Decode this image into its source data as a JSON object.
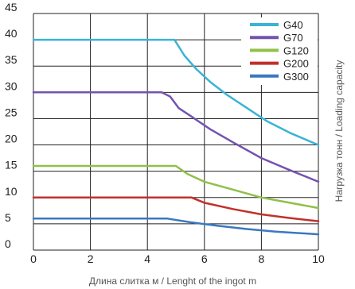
{
  "chart_data": {
    "type": "line",
    "xlabel": "Длина слитка м / Lenght of the ingot m",
    "ylabel": "Нагрузка тонн / Loading capacity",
    "xlim": [
      0,
      10
    ],
    "ylim": [
      0,
      45
    ],
    "x_ticks": [
      0,
      2,
      4,
      6,
      8,
      10
    ],
    "y_ticks": [
      0,
      5,
      10,
      15,
      20,
      25,
      30,
      35,
      40,
      45
    ],
    "grid": true,
    "legend_position": "top-right",
    "series": [
      {
        "name": "G40",
        "color": "#3bb3d6",
        "points": [
          [
            0,
            40
          ],
          [
            4.95,
            40
          ],
          [
            5.3,
            37
          ],
          [
            5.7,
            34.5
          ],
          [
            6.2,
            32
          ],
          [
            6.8,
            29.5
          ],
          [
            7.5,
            27
          ],
          [
            8.2,
            24.5
          ],
          [
            9.0,
            22.3
          ],
          [
            10,
            20
          ]
        ]
      },
      {
        "name": "G70",
        "color": "#7453b0",
        "points": [
          [
            0,
            30
          ],
          [
            4.5,
            30
          ],
          [
            4.8,
            29.2
          ],
          [
            5.1,
            27
          ],
          [
            5.6,
            25.2
          ],
          [
            6.2,
            23
          ],
          [
            7.0,
            20.5
          ],
          [
            8.0,
            17.5
          ],
          [
            9.0,
            15.2
          ],
          [
            10,
            13
          ]
        ]
      },
      {
        "name": "G120",
        "color": "#90c04a",
        "points": [
          [
            0,
            16
          ],
          [
            5.0,
            16
          ],
          [
            5.4,
            14.5
          ],
          [
            6.0,
            13
          ],
          [
            7.0,
            11.5
          ],
          [
            8.0,
            10
          ],
          [
            9.0,
            9
          ],
          [
            10,
            8
          ]
        ]
      },
      {
        "name": "G200",
        "color": "#c0312b",
        "points": [
          [
            0,
            10
          ],
          [
            5.55,
            10
          ],
          [
            6.0,
            9
          ],
          [
            7.0,
            7.8
          ],
          [
            8.0,
            6.8
          ],
          [
            9.0,
            6.1
          ],
          [
            10,
            5.5
          ]
        ]
      },
      {
        "name": "G300",
        "color": "#3a78c2",
        "points": [
          [
            0,
            6
          ],
          [
            4.7,
            6
          ],
          [
            5.5,
            5.3
          ],
          [
            6.5,
            4.6
          ],
          [
            7.5,
            4
          ],
          [
            8.5,
            3.5
          ],
          [
            10,
            3
          ]
        ]
      }
    ]
  }
}
